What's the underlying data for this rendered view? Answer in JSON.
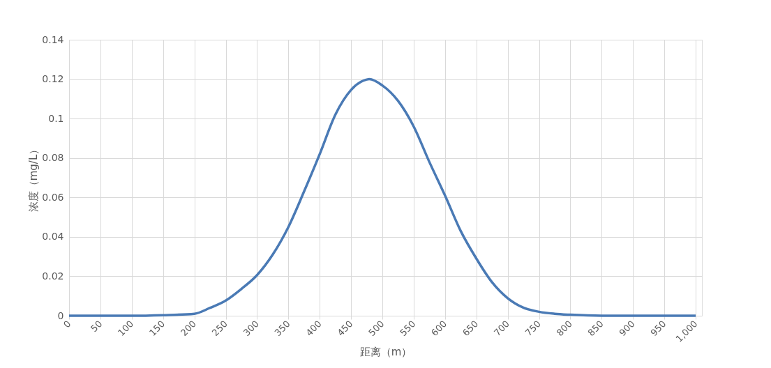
{
  "chart_data": {
    "type": "line",
    "xlabel": "距离（m）",
    "ylabel": "浓度（mg/L）",
    "x": [
      0,
      50,
      100,
      150,
      200,
      225,
      250,
      275,
      300,
      325,
      350,
      375,
      400,
      425,
      450,
      475,
      479,
      500,
      525,
      550,
      575,
      600,
      625,
      650,
      675,
      700,
      725,
      750,
      775,
      800,
      850,
      900,
      950,
      1000
    ],
    "series": [
      {
        "color": "#4a7ab5",
        "values": [
          0,
          0,
          0,
          0.0003,
          0.001,
          0.004,
          0.0077,
          0.0136,
          0.0206,
          0.031,
          0.045,
          0.063,
          0.082,
          0.102,
          0.1145,
          0.1198,
          0.12,
          0.1168,
          0.109,
          0.096,
          0.078,
          0.061,
          0.043,
          0.029,
          0.017,
          0.0089,
          0.0041,
          0.002,
          0.001,
          0.0005,
          0,
          0,
          0,
          0
        ]
      }
    ],
    "xlim": [
      0,
      1010
    ],
    "xticks": [
      0,
      50,
      100,
      150,
      200,
      250,
      300,
      350,
      400,
      450,
      500,
      550,
      600,
      650,
      700,
      750,
      800,
      850,
      900,
      950,
      {
        "value": 1000,
        "label": "1,000"
      }
    ],
    "ylim": [
      0,
      0.14
    ],
    "yticks": [
      0,
      0.02,
      0.04,
      0.06,
      0.08,
      0.1,
      0.12,
      0.14
    ],
    "grid": true,
    "marker": "none",
    "line_style": "solid"
  }
}
